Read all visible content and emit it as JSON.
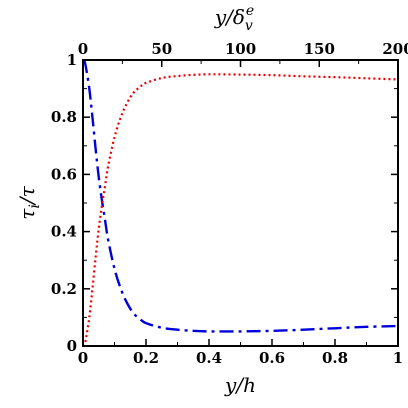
{
  "chart_data": {
    "type": "line",
    "xlabel": "y/h",
    "x2label": "y/δ_v^e",
    "ylabel": "τ_i/τ",
    "xlim": [
      0,
      1
    ],
    "x2lim": [
      0,
      200
    ],
    "ylim": [
      0,
      1
    ],
    "xticks": [
      0,
      0.2,
      0.4,
      0.6,
      0.8,
      1
    ],
    "xtick_labels": [
      "0",
      "0.2",
      "0.4",
      "0.6",
      "0.8",
      "1"
    ],
    "x2ticks": [
      0,
      50,
      100,
      150,
      200
    ],
    "x2tick_labels": [
      "0",
      "50",
      "100",
      "150",
      "200"
    ],
    "yticks": [
      0,
      0.2,
      0.4,
      0.6,
      0.8,
      1
    ],
    "ytick_labels": [
      "0",
      "0.2",
      "0.4",
      "0.6",
      "0.8",
      "1"
    ],
    "grid": false,
    "series": [
      {
        "style": "dash-dot",
        "color": "#0000dd",
        "x": [
          0,
          0.005,
          0.01,
          0.02,
          0.03,
          0.04,
          0.05,
          0.06,
          0.07,
          0.08,
          0.1,
          0.12,
          0.14,
          0.16,
          0.18,
          0.2,
          0.25,
          0.3,
          0.35,
          0.4,
          0.5,
          0.6,
          0.7,
          0.8,
          0.9,
          1.0
        ],
        "y": [
          1.0,
          0.995,
          0.97,
          0.9,
          0.8,
          0.69,
          0.59,
          0.51,
          0.44,
          0.37,
          0.27,
          0.2,
          0.15,
          0.115,
          0.095,
          0.08,
          0.064,
          0.057,
          0.053,
          0.051,
          0.051,
          0.053,
          0.057,
          0.062,
          0.067,
          0.07
        ]
      },
      {
        "style": "dotted",
        "color": "#ee0000",
        "x": [
          0,
          0.005,
          0.01,
          0.02,
          0.03,
          0.04,
          0.05,
          0.06,
          0.07,
          0.08,
          0.1,
          0.12,
          0.14,
          0.16,
          0.18,
          0.2,
          0.25,
          0.3,
          0.35,
          0.4,
          0.5,
          0.6,
          0.7,
          0.8,
          0.9,
          1.0
        ],
        "y": [
          0.0,
          0.005,
          0.03,
          0.1,
          0.2,
          0.31,
          0.41,
          0.49,
          0.56,
          0.63,
          0.73,
          0.8,
          0.85,
          0.885,
          0.905,
          0.92,
          0.937,
          0.944,
          0.948,
          0.95,
          0.949,
          0.947,
          0.943,
          0.94,
          0.936,
          0.932
        ]
      }
    ]
  }
}
